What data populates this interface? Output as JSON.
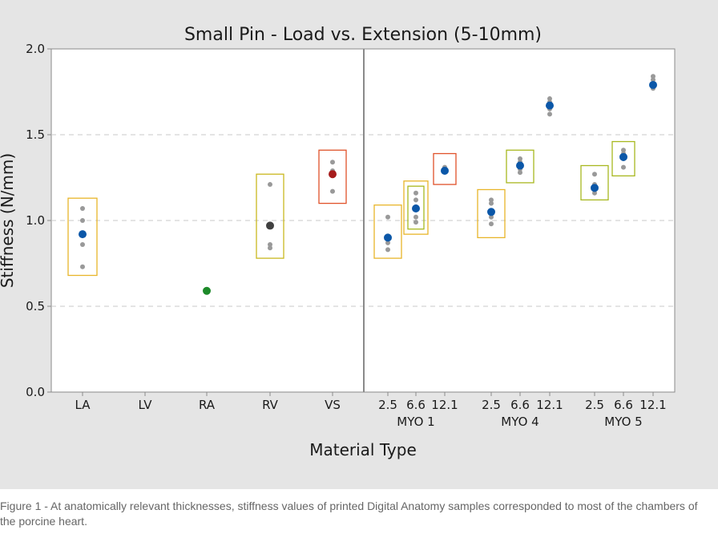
{
  "caption": "Figure 1 - At anatomically relevant thicknesses, stiffness values of printed Digital Anatomy samples corresponded to most of the chambers of the porcine heart.",
  "chart_data": {
    "type": "scatter",
    "title": "Small Pin - Load vs. Extension (5-10mm)",
    "xlabel": "Material Type",
    "ylabel": "Stiffness (N/mm)",
    "ylim": [
      0,
      2.0
    ],
    "yticks": [
      "0.0",
      "0.5",
      "1.0",
      "1.5",
      "2.0"
    ],
    "grid": "horizontal dashed",
    "categories": [
      {
        "label": "LA",
        "group": ""
      },
      {
        "label": "LV",
        "group": ""
      },
      {
        "label": "RA",
        "group": ""
      },
      {
        "label": "RV",
        "group": ""
      },
      {
        "label": "VS",
        "group": ""
      },
      {
        "label": "2.5",
        "group": "MYO 1"
      },
      {
        "label": "6.6",
        "group": "MYO 1"
      },
      {
        "label": "12.1",
        "group": "MYO 1"
      },
      {
        "label": "2.5",
        "group": "MYO 4"
      },
      {
        "label": "6.6",
        "group": "MYO 4"
      },
      {
        "label": "12.1",
        "group": "MYO 4"
      },
      {
        "label": "2.5",
        "group": "MYO 5"
      },
      {
        "label": "6.6",
        "group": "MYO 5"
      },
      {
        "label": "12.1",
        "group": "MYO 5"
      }
    ],
    "groups": [
      "MYO 1",
      "MYO 4",
      "MYO 5"
    ],
    "series": [
      {
        "category": "LA",
        "points": [
          1.07,
          1.0,
          0.86,
          0.73
        ],
        "mean": 0.92,
        "box": [
          0.68,
          1.13
        ],
        "mean_color": "#0b57a8",
        "box_color": "#e8b52a"
      },
      {
        "category": "LV",
        "points": [],
        "mean": null,
        "box": null
      },
      {
        "category": "RA",
        "points": [],
        "mean": 0.59,
        "box": null,
        "mean_color": "#1d8a2a"
      },
      {
        "category": "RV",
        "points": [
          1.21,
          0.86,
          0.84
        ],
        "mean": 0.97,
        "box": [
          0.78,
          1.27
        ],
        "mean_color": "#404040",
        "box_color": "#c9b81f"
      },
      {
        "category": "VS",
        "points": [
          1.34,
          1.29,
          1.17
        ],
        "mean": 1.27,
        "box": [
          1.1,
          1.41
        ],
        "mean_color": "#a61c1c",
        "box_color": "#e0522a"
      },
      {
        "category": "MYO 1 2.5",
        "points": [
          1.02,
          0.91,
          0.87,
          0.83
        ],
        "mean": 0.9,
        "box": [
          0.78,
          1.09
        ],
        "mean_color": "#0b57a8",
        "box_color": "#e8b52a"
      },
      {
        "category": "MYO 1 6.6",
        "points": [
          1.16,
          1.12,
          1.08,
          1.02,
          0.99
        ],
        "mean": 1.07,
        "box": [
          0.92,
          1.23
        ],
        "mean_color": "#0b57a8",
        "box_color": "#e8b52a"
      },
      {
        "category": "MYO 1 6.6 (inner)",
        "points": [],
        "mean": null,
        "box": [
          0.95,
          1.2
        ],
        "box_color": "#a8b820"
      },
      {
        "category": "MYO 1 12.1",
        "points": [
          1.31,
          1.29
        ],
        "mean": 1.29,
        "box": [
          1.21,
          1.39
        ],
        "mean_color": "#0b57a8",
        "box_color": "#e0522a"
      },
      {
        "category": "MYO 4 2.5",
        "points": [
          1.12,
          1.1,
          1.02,
          0.98
        ],
        "mean": 1.05,
        "box": [
          0.9,
          1.18
        ],
        "mean_color": "#0b57a8",
        "box_color": "#e8b52a"
      },
      {
        "category": "MYO 4 6.6",
        "points": [
          1.36,
          1.34,
          1.3,
          1.28
        ],
        "mean": 1.32,
        "box": [
          1.22,
          1.41
        ],
        "mean_color": "#0b57a8",
        "box_color": "#a8b820"
      },
      {
        "category": "MYO 4 12.1",
        "points": [
          1.71,
          1.69,
          1.65,
          1.62
        ],
        "mean": 1.67,
        "box": null,
        "mean_color": "#0b57a8"
      },
      {
        "category": "MYO 5 2.5",
        "points": [
          1.27,
          1.21,
          1.18,
          1.16
        ],
        "mean": 1.19,
        "box": [
          1.12,
          1.32
        ],
        "mean_color": "#0b57a8",
        "box_color": "#a8b820"
      },
      {
        "category": "MYO 5 6.6",
        "points": [
          1.41,
          1.39,
          1.36,
          1.31
        ],
        "mean": 1.37,
        "box": [
          1.26,
          1.46
        ],
        "mean_color": "#0b57a8",
        "box_color": "#a8b820"
      },
      {
        "category": "MYO 5 12.1",
        "points": [
          1.84,
          1.82,
          1.79,
          1.78,
          1.77
        ],
        "mean": 1.79,
        "box": null,
        "mean_color": "#0b57a8"
      }
    ],
    "point_color": "#999999"
  }
}
